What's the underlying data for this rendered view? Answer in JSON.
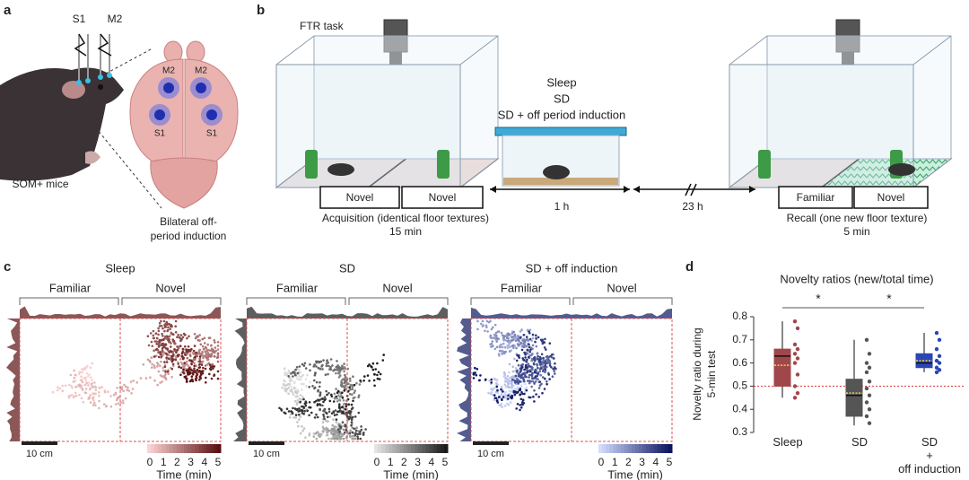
{
  "panel_labels": [
    "a",
    "b",
    "c",
    "d"
  ],
  "panel_a": {
    "electrodes": [
      "S1",
      "M2"
    ],
    "brain_sites": [
      "M2",
      "M2",
      "S1",
      "S1"
    ],
    "mouse_label": "SOM+ mice",
    "induction_label": [
      "Bilateral off-",
      "period induction"
    ]
  },
  "panel_b": {
    "task": "FTR task",
    "conditions": [
      "Sleep",
      "SD",
      "SD + off period induction"
    ],
    "acquisition": {
      "zones": [
        "Novel",
        "Novel"
      ],
      "caption": "Acquisition (identical floor textures)",
      "duration": "15 min"
    },
    "delays": [
      "1 h",
      "23 h"
    ],
    "recall": {
      "zones": [
        "Familiar",
        "Novel"
      ],
      "caption": "Recall (one new floor texture)",
      "duration": "5 min"
    }
  },
  "panel_c": {
    "groups": [
      {
        "title": "Sleep",
        "zones": [
          "Familiar",
          "Novel"
        ],
        "scale_bar": "10 cm",
        "colorbar_ticks": [
          0,
          1,
          2,
          3,
          4,
          5
        ],
        "colorbar_label": "Time (min)",
        "color": "#a0474b",
        "colormap": [
          "#fbd3d3",
          "#5a1010"
        ]
      },
      {
        "title": "SD",
        "zones": [
          "Familiar",
          "Novel"
        ],
        "scale_bar": "10 cm",
        "colorbar_ticks": [
          0,
          1,
          2,
          3,
          4,
          5
        ],
        "colorbar_label": "Time (min)",
        "color": "#666666",
        "colormap": [
          "#e4e4e4",
          "#1a1a1a"
        ]
      },
      {
        "title": "SD + off induction",
        "zones": [
          "Familiar",
          "Novel"
        ],
        "scale_bar": "10 cm",
        "colorbar_ticks": [
          0,
          1,
          2,
          3,
          4,
          5
        ],
        "colorbar_label": "Time (min)",
        "color": "#2b45b5",
        "colormap": [
          "#d3dcff",
          "#0b1560"
        ]
      }
    ]
  },
  "chart_data": {
    "type": "box",
    "title": "Novelty ratios (new/total time)",
    "y_label": [
      "Novelty ratio during",
      "5-min test"
    ],
    "categories": [
      "Sleep",
      "SD",
      "SD\n+\noff induction"
    ],
    "colors": [
      "#a0474b",
      "#555555",
      "#2b45b5"
    ],
    "ylim": [
      0.3,
      0.8
    ],
    "yticks": [
      0.3,
      0.4,
      0.5,
      0.6,
      0.7,
      0.8
    ],
    "reference_line": 0.5,
    "boxes": [
      {
        "whisker_low": 0.45,
        "q1": 0.5,
        "median": 0.63,
        "q3": 0.66,
        "whisker_high": 0.78,
        "mean": 0.59,
        "points": [
          0.78,
          0.75,
          0.68,
          0.66,
          0.64,
          0.62,
          0.6,
          0.55,
          0.5,
          0.47,
          0.45
        ]
      },
      {
        "whisker_low": 0.33,
        "q1": 0.37,
        "median": 0.46,
        "q3": 0.53,
        "whisker_high": 0.7,
        "mean": 0.47,
        "points": [
          0.7,
          0.64,
          0.6,
          0.58,
          0.56,
          0.52,
          0.49,
          0.46,
          0.43,
          0.4,
          0.37,
          0.34
        ]
      },
      {
        "whisker_low": 0.56,
        "q1": 0.58,
        "median": 0.6,
        "q3": 0.64,
        "whisker_high": 0.73,
        "mean": 0.61,
        "points": [
          0.73,
          0.7,
          0.66,
          0.63,
          0.61,
          0.6,
          0.58,
          0.57,
          0.56
        ]
      }
    ],
    "significance": [
      "*",
      "*"
    ]
  }
}
